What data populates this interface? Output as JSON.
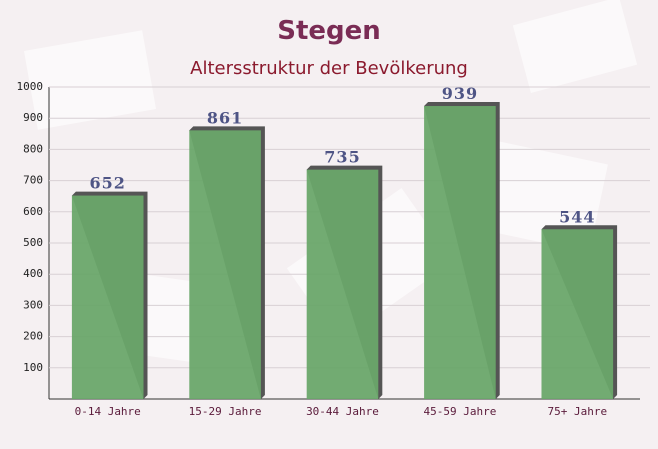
{
  "chart_data": {
    "type": "bar",
    "title": "Stegen",
    "subtitle": "Altersstruktur der Bevölkerung",
    "categories": [
      "0-14 Jahre",
      "15-29 Jahre",
      "30-44 Jahre",
      "45-59 Jahre",
      "75+ Jahre"
    ],
    "values": [
      652,
      861,
      735,
      939,
      544
    ],
    "color": "#6aa66a",
    "ylim": [
      0,
      1000
    ],
    "yticks": [
      100,
      200,
      300,
      400,
      500,
      600,
      700,
      800,
      900,
      1000
    ],
    "grid": true
  }
}
